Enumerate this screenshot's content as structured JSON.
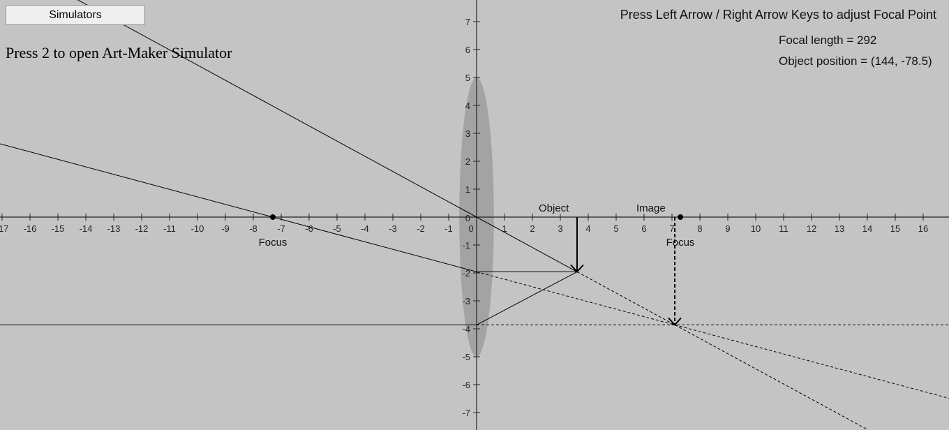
{
  "toolbar": {
    "simulators_label": "Simulators"
  },
  "hint": "Press 2 to open Art-Maker Simulator",
  "instructions": "Press Left Arrow / Right Arrow Keys to adjust Focal Point",
  "readout": {
    "focal_length": "Focal length = 292",
    "object_position": "Object position = (144, -78.5)"
  },
  "labels": {
    "object": "Object",
    "image": "Image",
    "focus_left": "Focus",
    "focus_right": "Focus"
  },
  "axes": {
    "x_ticks": [
      -17,
      -16,
      -15,
      -14,
      -13,
      -12,
      -11,
      -10,
      -9,
      -8,
      -7,
      -6,
      -5,
      -4,
      -3,
      -2,
      -1,
      0,
      1,
      2,
      3,
      4,
      5,
      6,
      7,
      8,
      9,
      10,
      11,
      12,
      13,
      14,
      15,
      16
    ],
    "y_ticks": [
      7,
      6,
      5,
      4,
      3,
      2,
      1,
      -1,
      -2,
      -3,
      -4,
      -5,
      -6,
      -7
    ]
  },
  "optics": {
    "lens_half_height": 5,
    "lens_half_width": 0.62,
    "focus_left": [
      -7.3,
      0
    ],
    "focus_right": [
      7.3,
      0
    ],
    "object_base": [
      3.6,
      0
    ],
    "object_tip": [
      3.6,
      -1.96
    ],
    "image_base": [
      7.1,
      0
    ],
    "image_tip": [
      7.1,
      -3.86
    ],
    "lens_hit_parallel": [
      0,
      -1.96
    ],
    "lens_hit_focal": [
      0,
      -3.86
    ]
  },
  "colors": {
    "background": "#c4c4c4",
    "lens": "#a3a3a3",
    "ink": "#000000"
  }
}
